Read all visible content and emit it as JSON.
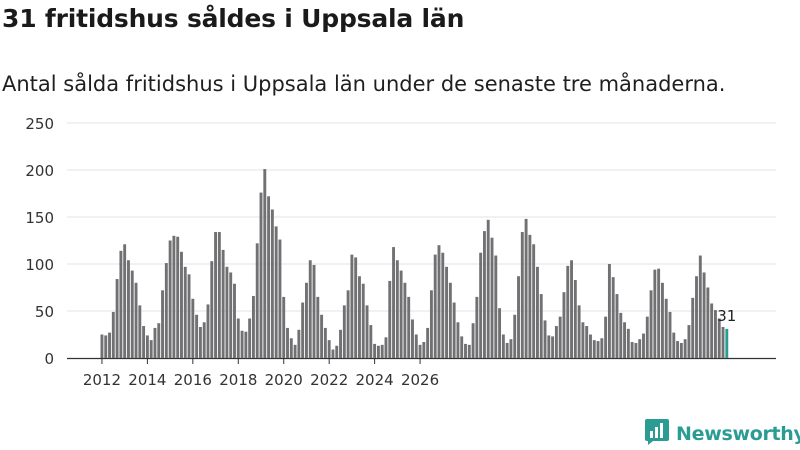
{
  "title": "31 fritidshus såldes i Uppsala län",
  "subtitle": "Antal sålda fritidshus i Uppsala län under de senaste tre månaderna.",
  "brand": {
    "name": "Newsworthy",
    "logo_icon": "bar-chart-logo-icon"
  },
  "colors": {
    "bar": "#717073",
    "highlight": "#2b9c94",
    "grid": "#e3e3e3",
    "axis": "#333333"
  },
  "chart_data": {
    "type": "bar",
    "title": "31 fritidshus såldes i Uppsala län",
    "xlabel": "",
    "ylabel": "",
    "ylim": [
      0,
      250
    ],
    "y_ticks": [
      0,
      50,
      100,
      150,
      200,
      250
    ],
    "x_start": 2012.0,
    "x_step": 0.1666667,
    "x_ticks": [
      "2012",
      "2014",
      "2016",
      "2018",
      "2020",
      "2022",
      "2024",
      "2026"
    ],
    "grid": true,
    "highlight_last": true,
    "last_label": "31",
    "values": [
      25,
      24,
      27,
      49,
      84,
      114,
      121,
      104,
      93,
      80,
      56,
      34,
      24,
      19,
      32,
      37,
      72,
      101,
      125,
      130,
      129,
      113,
      97,
      89,
      63,
      46,
      33,
      38,
      57,
      103,
      134,
      134,
      115,
      97,
      91,
      79,
      42,
      29,
      28,
      42,
      66,
      122,
      176,
      201,
      172,
      158,
      140,
      126,
      65,
      32,
      21,
      14,
      30,
      59,
      80,
      104,
      99,
      65,
      46,
      32,
      19,
      9,
      13,
      30,
      56,
      72,
      110,
      107,
      87,
      79,
      56,
      35,
      15,
      13,
      14,
      22,
      82,
      118,
      104,
      93,
      80,
      65,
      41,
      25,
      14,
      17,
      32,
      72,
      110,
      120,
      112,
      97,
      80,
      59,
      38,
      23,
      15,
      14,
      37,
      65,
      112,
      135,
      147,
      128,
      109,
      53,
      25,
      16,
      20,
      46,
      87,
      134,
      148,
      131,
      121,
      97,
      68,
      40,
      24,
      23,
      34,
      44,
      70,
      98,
      104,
      83,
      56,
      38,
      34,
      25,
      19,
      18,
      21,
      44,
      100,
      86,
      68,
      48,
      38,
      31,
      17,
      16,
      20,
      26,
      44,
      72,
      94,
      95,
      80,
      63,
      49,
      27,
      18,
      16,
      20,
      35,
      64,
      87,
      109,
      91,
      75,
      58,
      51,
      42,
      33,
      31
    ]
  }
}
